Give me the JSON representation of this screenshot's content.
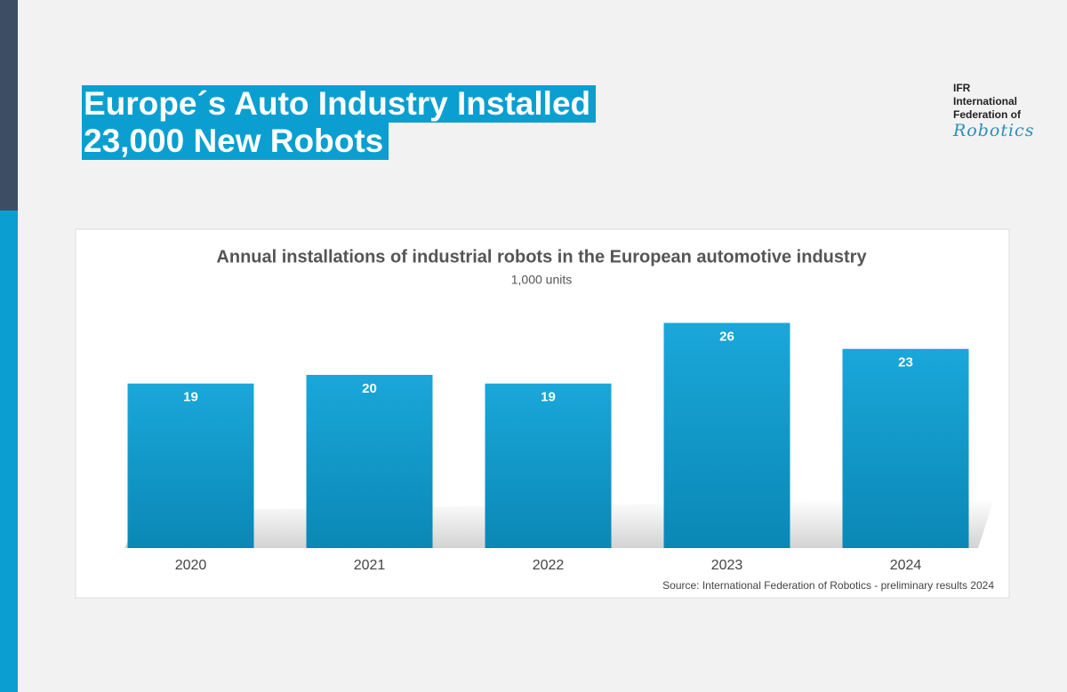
{
  "slide": {
    "title_lines": [
      "Europe´s Auto Industry Installed",
      "23,000 New Robots"
    ],
    "logo": {
      "lines": [
        "IFR",
        "International",
        "Federation of"
      ],
      "script": "Robotics"
    }
  },
  "chart_data": {
    "type": "bar",
    "title": "Annual installations of industrial robots in the European automotive industry",
    "subtitle": "1,000 units",
    "categories": [
      "2020",
      "2021",
      "2022",
      "2023",
      "2024"
    ],
    "values": [
      19,
      20,
      19,
      26,
      23
    ],
    "color": "#0a9ccf",
    "source": "Source: International Federation of Robotics - preliminary results 2024"
  }
}
